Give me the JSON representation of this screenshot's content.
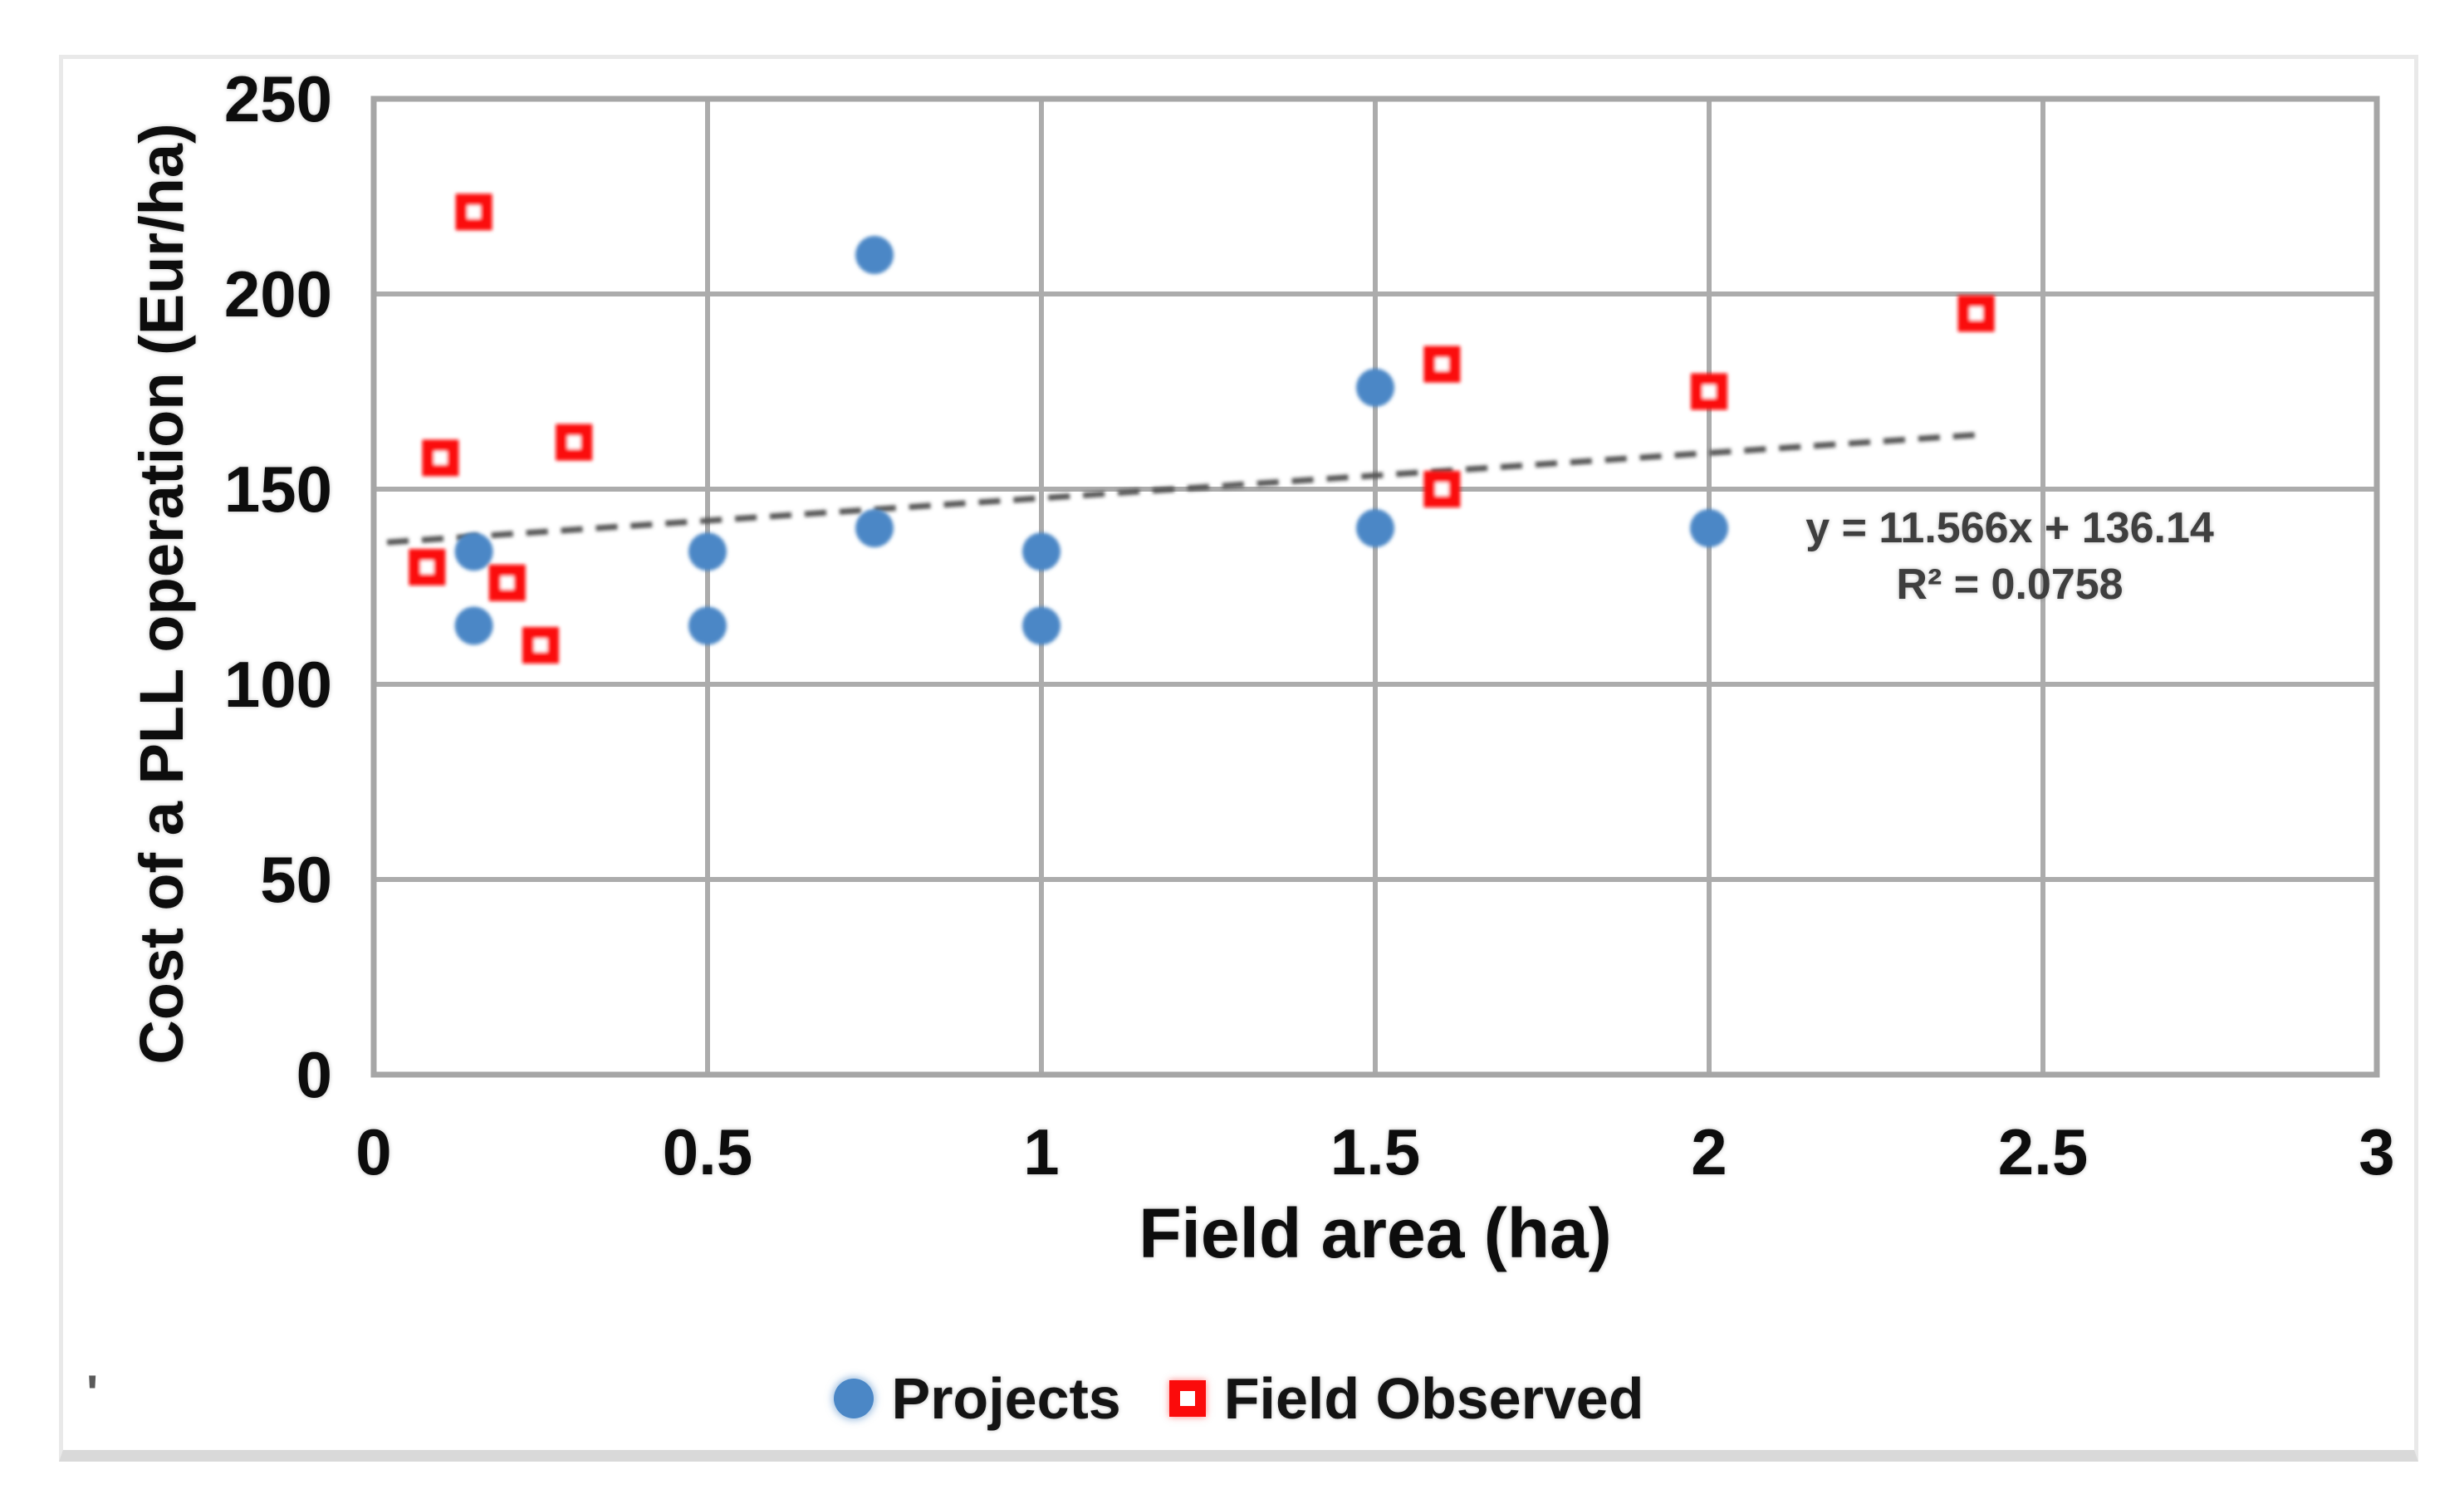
{
  "card": {
    "background": "#ffffff",
    "border_color": "#e9e9e9",
    "bottom_strip_color": "#d9d9d9"
  },
  "stray_mark": "'",
  "chart_data": {
    "type": "scatter",
    "title": "",
    "xlabel": "Field area (ha)",
    "ylabel": "Cost of a PLL operation (Eur/ha)",
    "xlim": [
      0,
      3
    ],
    "ylim": [
      0,
      250
    ],
    "xticks": [
      "0",
      "0.5",
      "1",
      "1.5",
      "2",
      "2.5",
      "3"
    ],
    "yticks": [
      "0",
      "50",
      "100",
      "150",
      "200",
      "250"
    ],
    "grid": true,
    "legend_position": "bottom",
    "colors": {
      "projects": "#4B87C6",
      "field_observed": "#fb0b0b",
      "gridline": "#ACACAC",
      "plot_border": "#A6A6A6",
      "trendline": "#555555",
      "equation_text": "#3f3f3f"
    },
    "series": [
      {
        "name": "Projects",
        "marker": "circle",
        "color": "#4B87C6",
        "points": [
          [
            0.15,
            134
          ],
          [
            0.15,
            115
          ],
          [
            0.5,
            134
          ],
          [
            0.5,
            115
          ],
          [
            0.75,
            210
          ],
          [
            0.75,
            140
          ],
          [
            1,
            134
          ],
          [
            1,
            115
          ],
          [
            1.5,
            176
          ],
          [
            1.5,
            140
          ],
          [
            2,
            140
          ]
        ]
      },
      {
        "name": "Field Observed",
        "marker": "open-square",
        "color": "#fb0b0b",
        "points": [
          [
            0.08,
            130
          ],
          [
            0.1,
            158
          ],
          [
            0.15,
            221
          ],
          [
            0.2,
            126
          ],
          [
            0.25,
            110
          ],
          [
            0.3,
            162
          ],
          [
            1.6,
            182
          ],
          [
            1.6,
            150
          ],
          [
            2,
            175
          ],
          [
            2.4,
            195
          ]
        ]
      }
    ],
    "trendline": {
      "label": "y = 11.566x + 136.14",
      "r2_label": "R² = 0.0758",
      "slope": 11.566,
      "intercept": 136.14,
      "x_start": 0.02,
      "x_end": 2.4,
      "style": "dashed",
      "color": "#555555"
    }
  }
}
